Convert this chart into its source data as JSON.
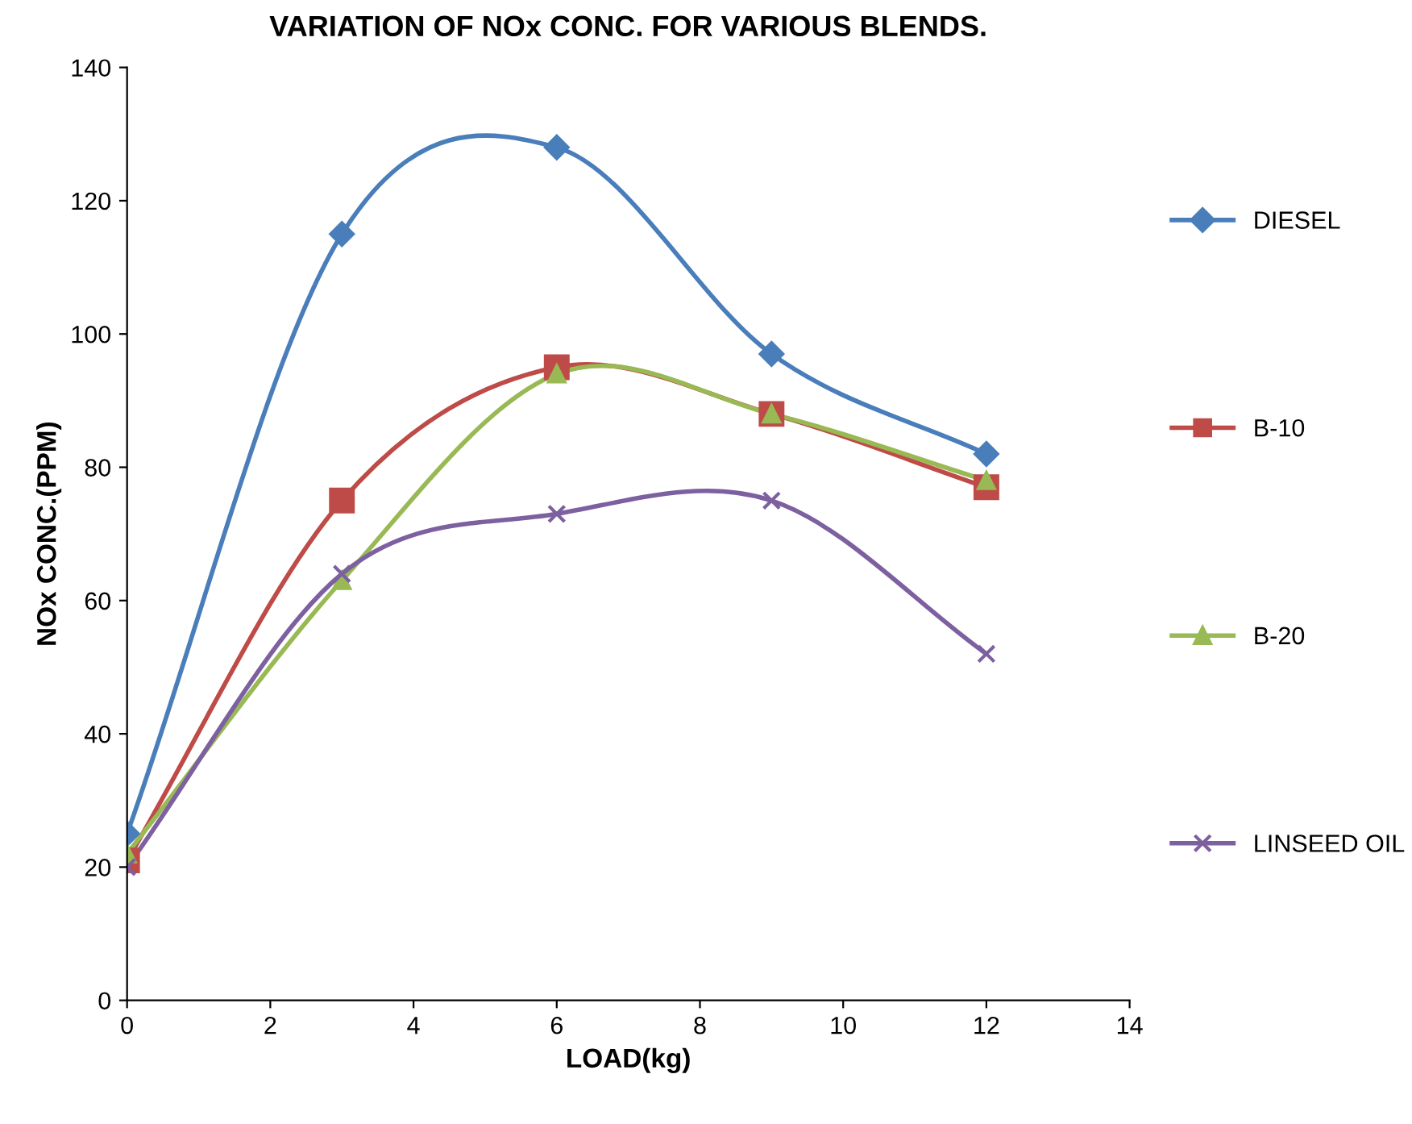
{
  "chart_data": {
    "type": "line",
    "title": "VARIATION OF NOx CONC. FOR VARIOUS BLENDS.",
    "xlabel": "LOAD(kg)",
    "ylabel": "NOx CONC.(PPM)",
    "x": [
      0,
      3,
      6,
      9,
      12
    ],
    "series": [
      {
        "name": "DIESEL",
        "color": "#4a7ebb",
        "marker": "diamond",
        "values": [
          25,
          115,
          128,
          97,
          82
        ]
      },
      {
        "name": "B-10",
        "color": "#be4b48",
        "marker": "square",
        "values": [
          21,
          75,
          95,
          88,
          77
        ]
      },
      {
        "name": "B-20",
        "color": "#98b954",
        "marker": "triangle",
        "values": [
          22,
          63,
          94,
          88,
          78
        ]
      },
      {
        "name": "LINSEED OIL",
        "color": "#7d60a0",
        "marker": "cross",
        "values": [
          20,
          64,
          73,
          75,
          52
        ]
      }
    ],
    "xlim": [
      0,
      14
    ],
    "xticks": [
      0,
      2,
      4,
      6,
      8,
      10,
      12,
      14
    ],
    "ylim": [
      0,
      140
    ],
    "yticks": [
      0,
      20,
      40,
      60,
      80,
      100,
      120,
      140
    ],
    "grid": false,
    "legend": "right",
    "line_style": "solid"
  }
}
